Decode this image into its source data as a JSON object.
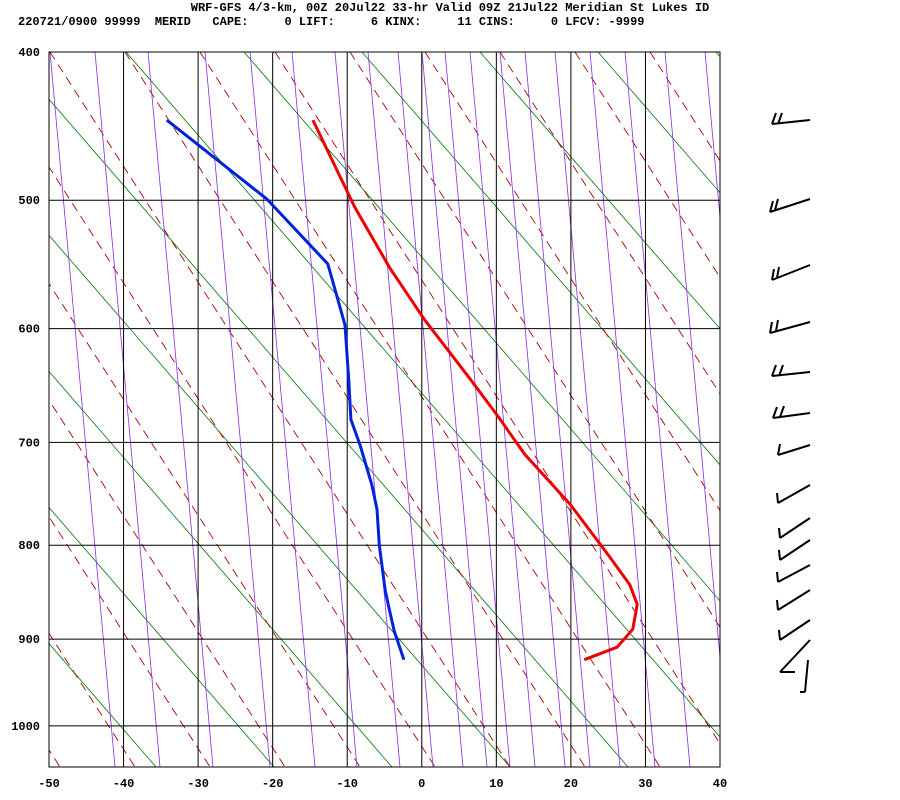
{
  "chart_data": {
    "type": "line",
    "title": "WRF-GFS 4/3-km, 00Z 20Jul22 33-hr Valid 09Z 21Jul22 Meridian St Lukes ID",
    "subtitle": "220721/0900 99999  MERID   CAPE:     0 LIFT:     6 KINX:     11 CINS:     0 LFCV: -9999",
    "xlim": [
      -50,
      40
    ],
    "xticks": [
      -50,
      -40,
      -30,
      -20,
      -10,
      0,
      10,
      20,
      30,
      40
    ],
    "ylim": [
      400,
      1050
    ],
    "yticks": [
      400,
      500,
      600,
      700,
      800,
      900,
      1000
    ],
    "y_inverted": true,
    "y_power": 0.286,
    "grid": true,
    "series": [
      {
        "color": "#ee0000",
        "x": [
          -14.6,
          -9.0,
          -4.3,
          0.4,
          6.5,
          10.1,
          13.8,
          19.9,
          25.2,
          27.9,
          28.9,
          28.3,
          26.2,
          21.8
        ],
        "y": [
          444,
          505,
          551,
          593,
          643,
          675,
          711,
          759,
          812,
          841,
          862,
          889,
          909,
          923
        ]
      },
      {
        "color": "#0022dd",
        "x": [
          -34.2,
          -20.8,
          -12.6,
          -10.3,
          -9.8,
          -9.5,
          -8.3,
          -6.7,
          -6.0,
          -5.7,
          -4.9,
          -4.5,
          -3.7,
          -2.4
        ],
        "y": [
          444,
          499,
          548,
          597,
          643,
          679,
          702,
          740,
          764,
          800,
          847,
          862,
          891,
          923
        ]
      }
    ]
  }
}
